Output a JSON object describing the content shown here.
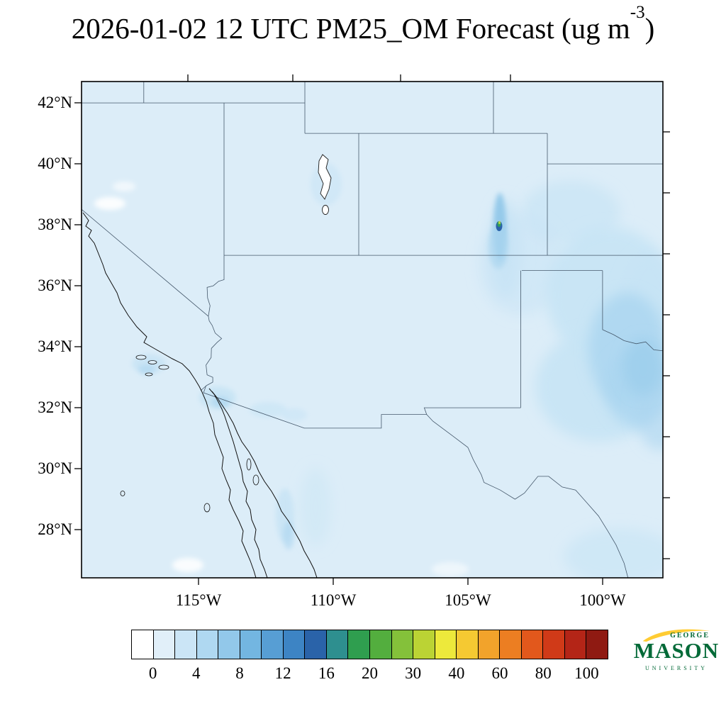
{
  "title": {
    "prefix": "2026-01-02 12 UTC PM25_OM Forecast (ug m",
    "superscript": "-3",
    "suffix": ")"
  },
  "map": {
    "lat_labels": [
      "42°N",
      "40°N",
      "38°N",
      "36°N",
      "34°N",
      "32°N",
      "30°N",
      "28°N"
    ],
    "lon_labels": [
      "115°W",
      "110°W",
      "105°W",
      "100°W"
    ]
  },
  "colorbar": {
    "tick_labels": [
      "0",
      "4",
      "8",
      "12",
      "16",
      "20",
      "30",
      "40",
      "60",
      "80",
      "100"
    ],
    "colors": [
      "#FFFFFF",
      "#E1EFF9",
      "#CBE5F6",
      "#AFD8F1",
      "#92C8EA",
      "#73B6E1",
      "#579ED4",
      "#3D84C4",
      "#2A63A9",
      "#2E8F8F",
      "#2F9E4F",
      "#53AE3E",
      "#84C13A",
      "#BBD334",
      "#EDE93B",
      "#F5C932",
      "#F2A32B",
      "#EC7E22",
      "#E2581C",
      "#D03A18",
      "#B42517",
      "#8F1A12"
    ]
  },
  "logo": {
    "george": "GEORGE",
    "mason": "MASON",
    "university": "UNIVERSITY",
    "green": "#046A38",
    "gold": "#FFCC33"
  },
  "chart_data": {
    "type": "heatmap",
    "title": "2026-01-02 12 UTC PM25_OM Forecast (ug m-3)",
    "variable": "PM25_OM",
    "units": "ug m-3",
    "valid_time": "2026-01-02 12 UTC",
    "region": "Southwestern United States and northern Mexico",
    "lat_range_deg_n": [
      26.4,
      42.7
    ],
    "lon_range_deg_w": [
      119.3,
      97.8
    ],
    "lat_ticks_deg_n": [
      42,
      40,
      38,
      36,
      34,
      32,
      30,
      28
    ],
    "lon_ticks_deg_w": [
      115,
      110,
      105,
      100
    ],
    "colorbar_levels": [
      0,
      2,
      4,
      6,
      8,
      10,
      12,
      14,
      16,
      18,
      20,
      25,
      30,
      35,
      40,
      50,
      60,
      70,
      80,
      90,
      100
    ],
    "colorbar_labeled_levels": [
      0,
      4,
      8,
      12,
      16,
      20,
      30,
      40,
      60,
      80,
      100
    ],
    "background_concentration": "0-2 ug m-3 over most of the domain",
    "features": [
      {
        "name": "point-plume",
        "approx_lat": 38.0,
        "approx_lon_w": 104.0,
        "peak_value_approx": 18,
        "description": "Small intense north-south plume in southeastern Colorado with dark-blue/green core"
      },
      {
        "name": "regional-enhancement",
        "approx_lat": 34.5,
        "approx_lon_w": 100.5,
        "value_range": [
          2,
          8
        ],
        "description": "Broad light-blue enhancement over the Texas/Oklahoma panhandles and eastern plains"
      },
      {
        "name": "socal-border-patches",
        "approx_lat": 32.5,
        "approx_lon_w": 115.5,
        "value_range": [
          2,
          6
        ],
        "description": "Small light-blue patches near the California-Mexico border and lower Colorado River"
      },
      {
        "name": "baja-streak",
        "approx_lat": 28.5,
        "approx_lon_w": 112.5,
        "value_range": [
          2,
          4
        ],
        "description": "Narrow light-blue streak along central Baja California"
      }
    ]
  }
}
